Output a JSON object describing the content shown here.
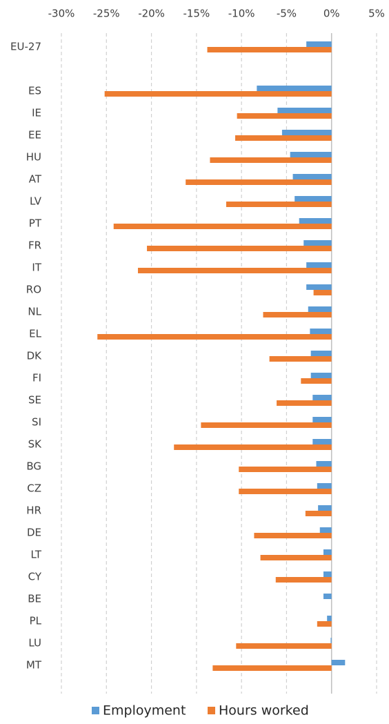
{
  "chart_data": {
    "type": "barh",
    "categories": [
      "EU-27",
      null,
      "ES",
      "IE",
      "EE",
      "HU",
      "AT",
      "LV",
      "PT",
      "FR",
      "IT",
      "RO",
      "NL",
      "EL",
      "DK",
      "FI",
      "SE",
      "SI",
      "SK",
      "BG",
      "CZ",
      "HR",
      "DE",
      "LT",
      "CY",
      "BE",
      "PL",
      "LU",
      "MT"
    ],
    "series": [
      {
        "name": "Employment",
        "color": "#5b9bd5",
        "values": [
          -2.8,
          null,
          -8.3,
          -6.0,
          -5.5,
          -4.6,
          -4.3,
          -4.1,
          -3.6,
          -3.1,
          -2.8,
          -2.8,
          -2.6,
          -2.4,
          -2.3,
          -2.3,
          -2.1,
          -2.1,
          -2.1,
          -1.7,
          -1.6,
          -1.5,
          -1.3,
          -0.9,
          -0.9,
          -0.9,
          -0.5,
          -0.1,
          1.5
        ]
      },
      {
        "name": "Hours worked",
        "color": "#ed7d31",
        "values": [
          -13.8,
          null,
          -25.2,
          -10.5,
          -10.7,
          -13.5,
          -16.2,
          -11.7,
          -24.2,
          -20.5,
          -21.5,
          -2.0,
          -7.6,
          -26.0,
          -6.9,
          -3.4,
          -6.1,
          -14.5,
          -17.5,
          -10.3,
          -10.3,
          -2.9,
          -8.6,
          -7.9,
          -6.2,
          null,
          -1.6,
          -10.6,
          -13.2
        ]
      }
    ],
    "xlim": [
      -30,
      5
    ],
    "xticks": [
      {
        "value": -30,
        "label": "-30%"
      },
      {
        "value": -25,
        "label": "-25%"
      },
      {
        "value": -20,
        "label": "-20%"
      },
      {
        "value": -15,
        "label": "-15%"
      },
      {
        "value": -10,
        "label": "-10%"
      },
      {
        "value": -5,
        "label": "-5%"
      },
      {
        "value": 0,
        "label": "0%"
      },
      {
        "value": 5,
        "label": "5%"
      }
    ],
    "grid": true,
    "legend": "bottom"
  }
}
